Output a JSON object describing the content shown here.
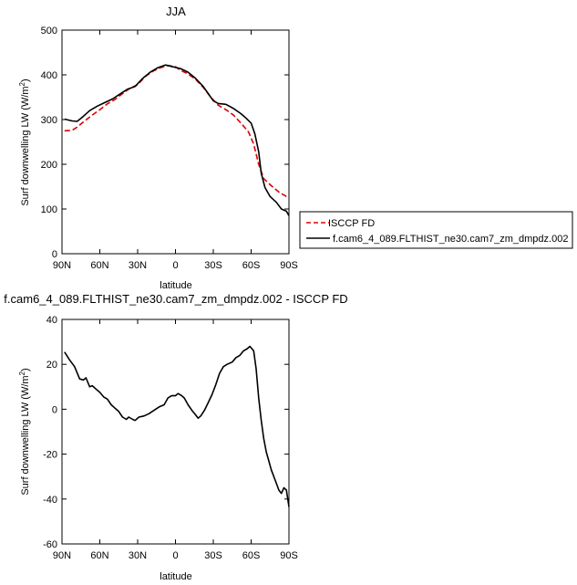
{
  "chart_data": [
    {
      "type": "line",
      "title": "JJA",
      "xlabel": "latitude",
      "ylabel": "Surf downwelling LW (W/m",
      "ylabel_sup": "2",
      "ylabel_close": ")",
      "xlim": [
        90,
        -90
      ],
      "ylim": [
        0,
        500
      ],
      "x_ticks": [
        90,
        60,
        30,
        0,
        -30,
        -60,
        -90
      ],
      "x_tick_labels": [
        "90N",
        "60N",
        "30N",
        "0",
        "30S",
        "60S",
        "90S"
      ],
      "y_ticks": [
        0,
        100,
        200,
        300,
        400,
        500
      ],
      "y_tick_labels": [
        "0",
        "100",
        "200",
        "300",
        "400",
        "500"
      ],
      "legend": "right",
      "series": [
        {
          "name": "ISCCP FD",
          "color": "#e00000",
          "dash": "dashed",
          "points": [
            [
              88,
              275
            ],
            [
              82,
              276
            ],
            [
              78,
              283
            ],
            [
              72,
              297
            ],
            [
              66,
              310
            ],
            [
              60,
              322
            ],
            [
              54,
              335
            ],
            [
              48,
              345
            ],
            [
              42,
              358
            ],
            [
              36,
              370
            ],
            [
              30,
              378
            ],
            [
              24,
              396
            ],
            [
              18,
              408
            ],
            [
              12,
              416
            ],
            [
              6,
              421
            ],
            [
              0,
              418
            ],
            [
              -4,
              410
            ],
            [
              -10,
              402
            ],
            [
              -16,
              390
            ],
            [
              -22,
              372
            ],
            [
              -28,
              350
            ],
            [
              -34,
              332
            ],
            [
              -40,
              322
            ],
            [
              -46,
              310
            ],
            [
              -52,
              292
            ],
            [
              -58,
              272
            ],
            [
              -62,
              245
            ],
            [
              -66,
              200
            ],
            [
              -70,
              168
            ],
            [
              -76,
              152
            ],
            [
              -82,
              138
            ],
            [
              -88,
              128
            ]
          ]
        },
        {
          "name": "f.cam6_4_089.FLTHIST_ne30.cam7_zm_dmpdz.002",
          "color": "#000000",
          "dash": "solid",
          "points": [
            [
              88,
              301
            ],
            [
              82,
              297
            ],
            [
              78,
              296
            ],
            [
              74,
              305
            ],
            [
              68,
              320
            ],
            [
              62,
              330
            ],
            [
              56,
              338
            ],
            [
              50,
              346
            ],
            [
              44,
              357
            ],
            [
              38,
              368
            ],
            [
              32,
              374
            ],
            [
              26,
              392
            ],
            [
              20,
              406
            ],
            [
              14,
              416
            ],
            [
              8,
              422
            ],
            [
              2,
              418
            ],
            [
              -4,
              414
            ],
            [
              -10,
              406
            ],
            [
              -16,
              392
            ],
            [
              -22,
              374
            ],
            [
              -26,
              358
            ],
            [
              -30,
              342
            ],
            [
              -34,
              336
            ],
            [
              -40,
              334
            ],
            [
              -46,
              325
            ],
            [
              -52,
              313
            ],
            [
              -56,
              303
            ],
            [
              -60,
              292
            ],
            [
              -63,
              268
            ],
            [
              -66,
              228
            ],
            [
              -68,
              180
            ],
            [
              -71,
              148
            ],
            [
              -75,
              128
            ],
            [
              -80,
              115
            ],
            [
              -84,
              100
            ],
            [
              -88,
              95
            ],
            [
              -90,
              85
            ]
          ]
        }
      ]
    },
    {
      "type": "line",
      "title": "f.cam6_4_089.FLTHIST_ne30.cam7_zm_dmpdz.002 - ISCCP FD",
      "xlabel": "latitude",
      "ylabel": "Surf downwelling LW (W/m",
      "ylabel_sup": "2",
      "ylabel_close": ")",
      "xlim": [
        90,
        -90
      ],
      "ylim": [
        -60,
        40
      ],
      "x_ticks": [
        90,
        60,
        30,
        0,
        -30,
        -60,
        -90
      ],
      "x_tick_labels": [
        "90N",
        "60N",
        "30N",
        "0",
        "30S",
        "60S",
        "90S"
      ],
      "y_ticks": [
        -60,
        -40,
        -20,
        0,
        20,
        40
      ],
      "y_tick_labels": [
        "-60",
        "-40",
        "-20",
        "0",
        "20",
        "40"
      ],
      "series": [
        {
          "color": "#000000",
          "points": [
            [
              88,
              25.5
            ],
            [
              84,
              22
            ],
            [
              80,
              19
            ],
            [
              76,
              13.5
            ],
            [
              73,
              13
            ],
            [
              71,
              14
            ],
            [
              68,
              10
            ],
            [
              66,
              10.5
            ],
            [
              63,
              9
            ],
            [
              60,
              7.5
            ],
            [
              57,
              5.5
            ],
            [
              54,
              4.5
            ],
            [
              51,
              2
            ],
            [
              48,
              0.5
            ],
            [
              45,
              -1
            ],
            [
              42,
              -3.5
            ],
            [
              39,
              -4.5
            ],
            [
              37,
              -3.5
            ],
            [
              34,
              -4.5
            ],
            [
              32,
              -5
            ],
            [
              29,
              -3.5
            ],
            [
              25,
              -3
            ],
            [
              21,
              -2
            ],
            [
              17,
              -0.5
            ],
            [
              13,
              1
            ],
            [
              9,
              2
            ],
            [
              6,
              5
            ],
            [
              3,
              6
            ],
            [
              0,
              6
            ],
            [
              -2,
              7
            ],
            [
              -5,
              6
            ],
            [
              -7,
              5
            ],
            [
              -10,
              2
            ],
            [
              -13,
              -0.5
            ],
            [
              -16,
              -2.5
            ],
            [
              -18,
              -4
            ],
            [
              -20,
              -3
            ],
            [
              -23,
              -0.5
            ],
            [
              -26,
              3
            ],
            [
              -29,
              6.5
            ],
            [
              -32,
              11
            ],
            [
              -35,
              16
            ],
            [
              -38,
              19
            ],
            [
              -41,
              20
            ],
            [
              -45,
              21
            ],
            [
              -48,
              23
            ],
            [
              -51,
              24
            ],
            [
              -54,
              26
            ],
            [
              -57,
              27
            ],
            [
              -59,
              28
            ],
            [
              -62,
              26
            ],
            [
              -64,
              18
            ],
            [
              -66,
              5
            ],
            [
              -68,
              -5
            ],
            [
              -70,
              -13
            ],
            [
              -72,
              -19
            ],
            [
              -74,
              -23
            ],
            [
              -76,
              -27
            ],
            [
              -78,
              -30
            ],
            [
              -80,
              -33
            ],
            [
              -82,
              -36
            ],
            [
              -84,
              -37.5
            ],
            [
              -86,
              -35
            ],
            [
              -88,
              -36
            ],
            [
              -90,
              -43.5
            ]
          ]
        }
      ]
    }
  ]
}
